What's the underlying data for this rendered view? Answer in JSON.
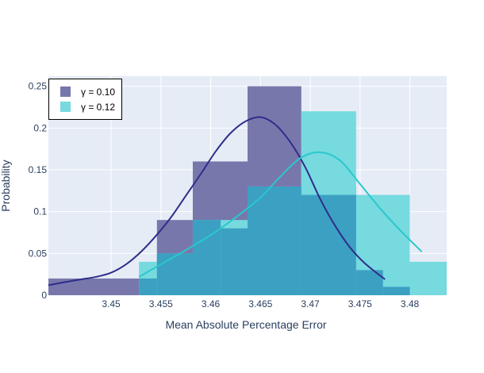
{
  "chart_data": {
    "type": "bar",
    "title": "",
    "xlabel": "Mean Absolute Percentage Error",
    "ylabel": "Probability",
    "xlim": [
      3.4437,
      3.4837
    ],
    "ylim": [
      0,
      0.262
    ],
    "x_ticks": [
      3.45,
      3.455,
      3.46,
      3.465,
      3.47,
      3.475,
      3.48
    ],
    "x_tick_labels": [
      "3.45",
      "3.455",
      "3.46",
      "3.465",
      "3.47",
      "3.475",
      "3.48"
    ],
    "y_ticks": [
      0,
      0.05,
      0.1,
      0.15,
      0.2,
      0.25
    ],
    "y_tick_labels": [
      "0",
      "0.05",
      "0.1",
      "0.15",
      "0.2",
      "0.25"
    ],
    "grid": true,
    "legend_position": "top-left",
    "series": [
      {
        "name": "γ = 0.10",
        "color": "#2e2e8a",
        "bar_color": "#7877ac",
        "bins": [
          {
            "x0": 3.4437,
            "x1": 3.4528,
            "value": 0.02
          },
          {
            "x0": 3.4528,
            "x1": 3.4546,
            "value": 0.02
          },
          {
            "x0": 3.4546,
            "x1": 3.4582,
            "value": 0.09
          },
          {
            "x0": 3.4582,
            "x1": 3.4637,
            "value": 0.16
          },
          {
            "x0": 3.4637,
            "x1": 3.4691,
            "value": 0.25
          },
          {
            "x0": 3.4691,
            "x1": 3.4746,
            "value": 0.13
          },
          {
            "x0": 3.4746,
            "x1": 3.4773,
            "value": 0.03
          },
          {
            "x0": 3.4773,
            "x1": 3.48,
            "value": 0.01
          }
        ],
        "curve": {
          "x": [
            3.4437,
            3.4455,
            3.447,
            3.4485,
            3.45,
            3.4515,
            3.453,
            3.4545,
            3.456,
            3.4575,
            3.459,
            3.4605,
            3.462,
            3.4635,
            3.465,
            3.4665,
            3.468,
            3.4695,
            3.471,
            3.4725,
            3.474,
            3.4755,
            3.4775
          ],
          "y": [
            0.012,
            0.016,
            0.019,
            0.022,
            0.027,
            0.037,
            0.052,
            0.071,
            0.093,
            0.119,
            0.145,
            0.172,
            0.194,
            0.208,
            0.213,
            0.204,
            0.183,
            0.153,
            0.115,
            0.083,
            0.057,
            0.038,
            0.019
          ]
        }
      },
      {
        "name": "γ = 0.12",
        "color": "#29c8cc",
        "bar_color": "#76dadf",
        "bins": [
          {
            "x0": 3.4528,
            "x1": 3.4546,
            "value": 0.04
          },
          {
            "x0": 3.4546,
            "x1": 3.4582,
            "value": 0.05
          },
          {
            "x0": 3.4582,
            "x1": 3.4637,
            "value": 0.09
          },
          {
            "x0": 3.4637,
            "x1": 3.4691,
            "value": 0.13
          },
          {
            "x0": 3.4691,
            "x1": 3.4746,
            "value": 0.22
          },
          {
            "x0": 3.4746,
            "x1": 3.48,
            "value": 0.12
          },
          {
            "x0": 3.48,
            "x1": 3.4837,
            "value": 0.04
          }
        ],
        "curve": {
          "x": [
            3.4528,
            3.455,
            3.4575,
            3.46,
            3.4625,
            3.465,
            3.467,
            3.469,
            3.471,
            3.473,
            3.475,
            3.477,
            3.479,
            3.4812
          ],
          "y": [
            0.022,
            0.037,
            0.054,
            0.072,
            0.093,
            0.117,
            0.142,
            0.164,
            0.171,
            0.161,
            0.133,
            0.104,
            0.078,
            0.052
          ]
        }
      }
    ],
    "overlap_color": "#3ca0c2",
    "overlap_bins": [
      {
        "x0": 3.4528,
        "x1": 3.4546,
        "value": 0.02
      },
      {
        "x0": 3.4546,
        "x1": 3.4582,
        "value": 0.05
      },
      {
        "x0": 3.4582,
        "x1": 3.461,
        "value": 0.09
      },
      {
        "x0": 3.461,
        "x1": 3.4637,
        "value": 0.08
      },
      {
        "x0": 3.4637,
        "x1": 3.4691,
        "value": 0.13
      },
      {
        "x0": 3.4691,
        "x1": 3.4746,
        "value": 0.12
      },
      {
        "x0": 3.4746,
        "x1": 3.4773,
        "value": 0.03
      },
      {
        "x0": 3.4773,
        "x1": 3.48,
        "value": 0.01
      }
    ]
  }
}
